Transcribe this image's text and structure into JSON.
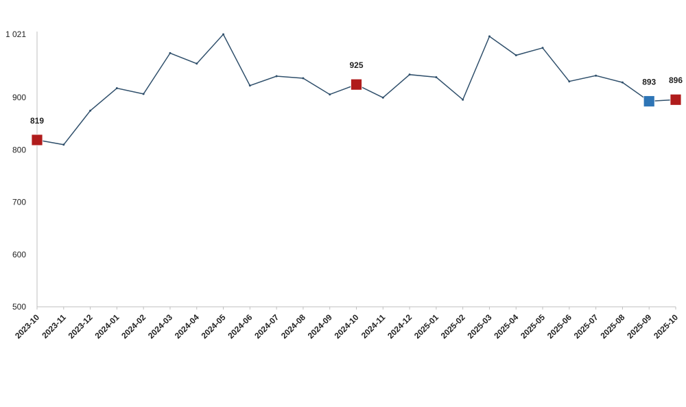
{
  "chart_data": {
    "type": "line",
    "title": "",
    "xlabel": "",
    "ylabel": "",
    "ylim": [
      500,
      1021
    ],
    "yticks": [
      500,
      600,
      700,
      800,
      900,
      1021
    ],
    "ytick_labels": [
      "500",
      "600",
      "700",
      "800",
      "900",
      "1 021"
    ],
    "grid": false,
    "legend": "none",
    "x": [
      "2023-10",
      "2023-11",
      "2023-12",
      "2024-01",
      "2024-02",
      "2024-03",
      "2024-04",
      "2024-05",
      "2024-06",
      "2024-07",
      "2024-08",
      "2024-09",
      "2024-10",
      "2024-11",
      "2024-12",
      "2025-01",
      "2025-02",
      "2025-03",
      "2025-04",
      "2025-05",
      "2025-06",
      "2025-07",
      "2025-08",
      "2025-09",
      "2025-10"
    ],
    "series": [
      {
        "values": [
          819,
          810,
          875,
          918,
          907,
          985,
          965,
          1021,
          923,
          941,
          937,
          906,
          925,
          900,
          944,
          939,
          896,
          1017,
          981,
          995,
          931,
          942,
          929,
          893,
          896
        ]
      }
    ],
    "highlighted": [
      {
        "index": 0,
        "label": "819",
        "color": "#b01c1c"
      },
      {
        "index": 12,
        "label": "925",
        "color": "#b01c1c"
      },
      {
        "index": 23,
        "label": "893",
        "color": "#2e75b6"
      },
      {
        "index": 24,
        "label": "896",
        "color": "#b01c1c"
      }
    ],
    "line_color": "#2f4f6b",
    "axis_color": "#bfbfbf"
  }
}
